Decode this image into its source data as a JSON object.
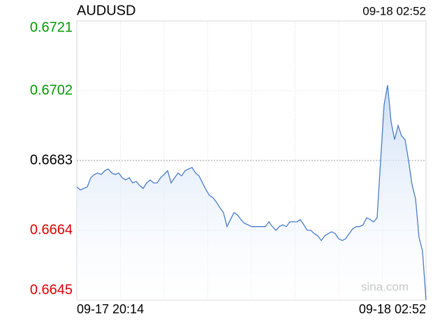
{
  "chart_data": {
    "type": "line",
    "title": "AUDUSD",
    "time": "09-18 02:52",
    "watermark": "sina.com",
    "color": "#4a7cc7",
    "values": [
      0.66758,
      0.6675,
      0.66754,
      0.66758,
      0.66783,
      0.66792,
      0.66796,
      0.66792,
      0.66802,
      0.66807,
      0.66796,
      0.66792,
      0.66796,
      0.66783,
      0.66777,
      0.66783,
      0.66769,
      0.66773,
      0.66762,
      0.66754,
      0.66769,
      0.66777,
      0.66769,
      0.66769,
      0.66783,
      0.66792,
      0.66802,
      0.66769,
      0.66783,
      0.66796,
      0.66788,
      0.66802,
      0.66807,
      0.66811,
      0.66796,
      0.66788,
      0.66769,
      0.6675,
      0.66735,
      0.66729,
      0.66716,
      0.66701,
      0.66688,
      0.6665,
      0.66669,
      0.66688,
      0.66682,
      0.66669,
      0.66659,
      0.66655,
      0.6665,
      0.6665,
      0.6665,
      0.6665,
      0.6665,
      0.66663,
      0.6665,
      0.6664,
      0.6665,
      0.66655,
      0.6665,
      0.66663,
      0.66663,
      0.66663,
      0.66669,
      0.66655,
      0.6664,
      0.6664,
      0.66631,
      0.66625,
      0.66612,
      0.66625,
      0.66631,
      0.66636,
      0.66631,
      0.66617,
      0.66612,
      0.66617,
      0.66631,
      0.66644,
      0.6665,
      0.6665,
      0.66655,
      0.66674,
      0.66669,
      0.66663,
      0.66674,
      0.6683,
      0.66982,
      0.67035,
      0.66935,
      0.66887,
      0.66925,
      0.66897,
      0.66887,
      0.6683,
      0.66764,
      0.66726,
      0.66621,
      0.66583,
      0.6645
    ],
    "xlim": [
      0,
      100
    ],
    "xticks": [
      {
        "value": 0,
        "label": "09-17 20:14"
      },
      {
        "value": 100,
        "label": "09-18 02:52"
      }
    ],
    "ylim": [
      0.6645,
      0.6721
    ],
    "yticks": [
      0.6721,
      0.6702,
      0.6683,
      0.6664,
      0.6645
    ],
    "ytick_colors": [
      "#009900",
      "#009900",
      "#000000",
      "#dd0000",
      "#dd0000"
    ],
    "reference_tick": 2,
    "grid": true
  }
}
